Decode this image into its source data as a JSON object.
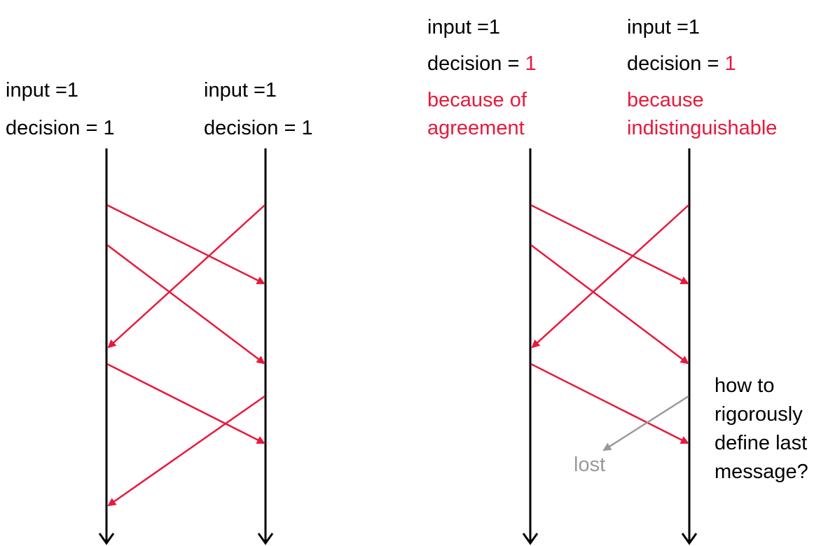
{
  "colors": {
    "message": "#e8193c",
    "lost": "#999999",
    "timeline": "#000000"
  },
  "left_scenario": {
    "p1": {
      "input": "input =1",
      "decision": "decision = 1"
    },
    "p2": {
      "input": "input =1",
      "decision": "decision = 1"
    }
  },
  "right_scenario": {
    "p1": {
      "input": "input =1",
      "decision_prefix": "decision = ",
      "decision_value": "1",
      "reason_line1": "because of",
      "reason_line2": "agreement"
    },
    "p2": {
      "input": "input =1",
      "decision_prefix": "decision = ",
      "decision_value": "1",
      "reason_line1": "because",
      "reason_line2": "indistinguishable"
    },
    "lost_label": "lost",
    "question": [
      "how to",
      "rigorously",
      "define last",
      "message?"
    ]
  }
}
